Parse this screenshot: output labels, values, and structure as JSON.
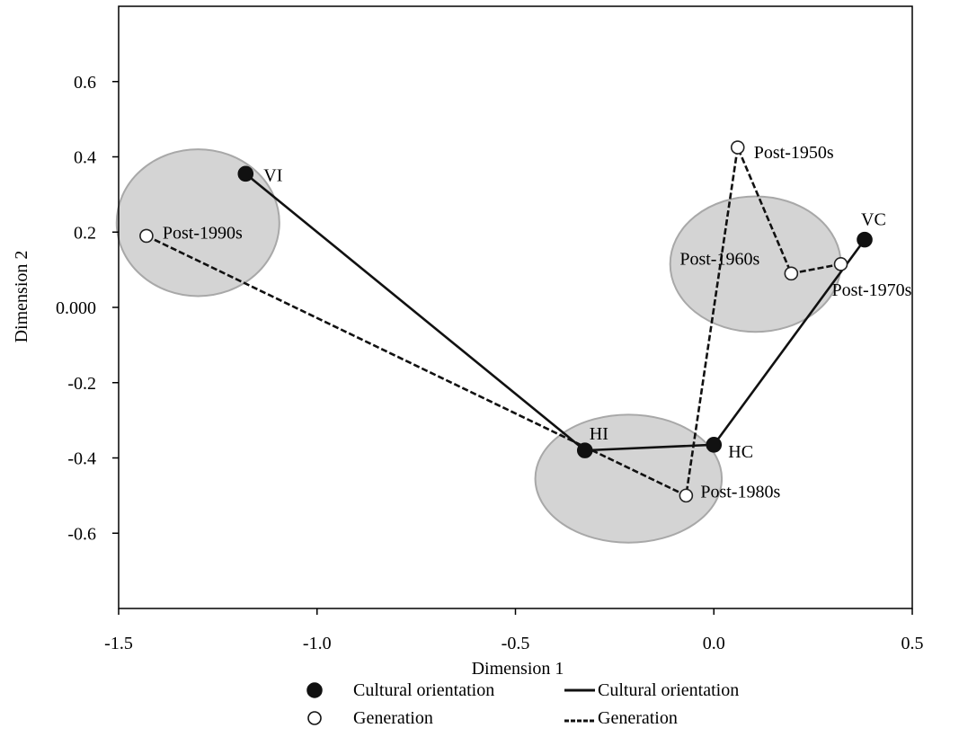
{
  "chart_data": {
    "type": "scatter",
    "xlabel": "Dimension 1",
    "ylabel": "Dimension 2",
    "xlim": [
      -1.5,
      0.5
    ],
    "ylim": [
      -0.8,
      0.8
    ],
    "xticks": [
      -1.5,
      -1.0,
      -0.5,
      0.0,
      0.5
    ],
    "xtick_labels": [
      "-1.5",
      "-1.0",
      "-0.5",
      "0.0",
      "0.5"
    ],
    "yticks": [
      0.6,
      0.4,
      0.2,
      0.0,
      -0.2,
      -0.4,
      -0.6
    ],
    "ytick_labels": [
      "0.6",
      "0.4",
      "0.2",
      "0.000",
      "-0.2",
      "-0.4",
      "-0.6"
    ],
    "grid": false,
    "clusters": [
      {
        "cx": -1.3,
        "cy": 0.225,
        "rx": 0.205,
        "ry": 0.195
      },
      {
        "cx": -0.215,
        "cy": -0.455,
        "rx": 0.235,
        "ry": 0.17
      },
      {
        "cx": 0.105,
        "cy": 0.115,
        "rx": 0.215,
        "ry": 0.18
      }
    ],
    "series": [
      {
        "name": "Cultural orientation",
        "marker": "filled-circle",
        "line": "solid",
        "points": [
          {
            "label": "VI",
            "x": -1.18,
            "y": 0.355
          },
          {
            "label": "HI",
            "x": -0.325,
            "y": -0.38
          },
          {
            "label": "HC",
            "x": 0.0,
            "y": -0.365
          },
          {
            "label": "VC",
            "x": 0.38,
            "y": 0.18
          }
        ]
      },
      {
        "name": "Generation",
        "marker": "open-circle",
        "line": "dashed",
        "points": [
          {
            "label": "Post-1990s",
            "x": -1.43,
            "y": 0.19
          },
          {
            "label": "Post-1980s",
            "x": -0.07,
            "y": -0.5
          },
          {
            "label": "Post-1950s",
            "x": 0.06,
            "y": 0.425
          },
          {
            "label": "Post-1960s",
            "x": 0.195,
            "y": 0.09
          },
          {
            "label": "Post-1970s",
            "x": 0.32,
            "y": 0.115
          }
        ]
      }
    ],
    "legend": {
      "placement": "bottom",
      "marker_entries": [
        "Cultural orientation",
        "Generation"
      ],
      "line_entries": [
        "Cultural orientation",
        "Generation"
      ]
    }
  }
}
